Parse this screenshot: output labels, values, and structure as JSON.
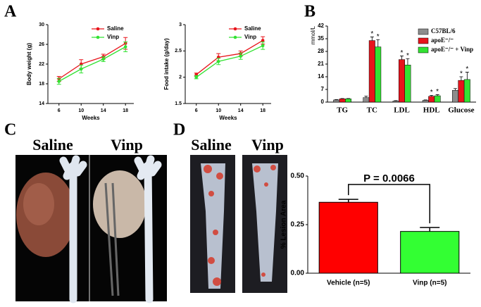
{
  "panel_labels": [
    "A",
    "B",
    "C",
    "D"
  ],
  "photo_labels": [
    "Saline",
    "Vinp",
    "Saline",
    "Vinp"
  ],
  "chart_data": [
    {
      "type": "line",
      "x_label": "Weeks",
      "y_label": "Body weight (g)",
      "x": [
        6,
        10,
        14,
        18
      ],
      "xlim": [
        4,
        19.5
      ],
      "xticks": [
        6,
        10,
        14,
        18
      ],
      "ylim": [
        14,
        30
      ],
      "yticks": [
        14,
        18,
        22,
        26,
        30
      ],
      "series": [
        {
          "name": "Saline",
          "color": "#e8141b",
          "values": [
            19,
            22,
            23.5,
            26.2
          ],
          "errors": [
            0.5,
            0.9,
            0.5,
            1.2
          ]
        },
        {
          "name": "Vinp",
          "color": "#33e233",
          "values": [
            18.5,
            21,
            23,
            25.5
          ],
          "errors": [
            0.6,
            0.8,
            0.5,
            1.0
          ]
        }
      ]
    },
    {
      "type": "line",
      "x_label": "Weeks",
      "y_label": "Food intake (g/day)",
      "x": [
        6,
        10,
        14,
        18
      ],
      "xlim": [
        4,
        19.5
      ],
      "xticks": [
        6,
        10,
        14,
        18
      ],
      "ylim": [
        1.5,
        3.0
      ],
      "yticks": [
        1.5,
        2.0,
        2.5,
        3.0
      ],
      "series": [
        {
          "name": "Saline",
          "color": "#e8141b",
          "values": [
            2.05,
            2.38,
            2.45,
            2.7
          ],
          "errors": [
            0.03,
            0.07,
            0.05,
            0.07
          ]
        },
        {
          "name": "Vinp",
          "color": "#33e233",
          "values": [
            2.0,
            2.3,
            2.4,
            2.6
          ],
          "errors": [
            0.03,
            0.06,
            0.06,
            0.07
          ]
        }
      ]
    },
    {
      "type": "grouped-bar",
      "y_label": "mmol/L",
      "categories": [
        "TG",
        "TC",
        "LDL",
        "HDL",
        "Glucose"
      ],
      "ylim": [
        0,
        42
      ],
      "yticks": [
        0,
        7,
        14,
        21,
        28,
        35,
        42
      ],
      "series": [
        {
          "name": "C57BL/6",
          "color": "#8c8c8c",
          "values": [
            1.2,
            2.5,
            0.6,
            1.0,
            6.5
          ],
          "errors": [
            0.2,
            0.8,
            0.2,
            0.2,
            1.0
          ],
          "significance": [
            null,
            null,
            null,
            null,
            null
          ]
        },
        {
          "name": "apoE⁻/⁻",
          "color": "#e8141b",
          "values": [
            1.8,
            34,
            23.5,
            3.2,
            12
          ],
          "errors": [
            0.2,
            2.0,
            2.0,
            0.5,
            2.0
          ],
          "significance": [
            null,
            "*",
            "*",
            "*",
            "*"
          ]
        },
        {
          "name": "apoE⁻/⁻ + Vinp",
          "color": "#33e233",
          "values": [
            1.8,
            30.5,
            20.5,
            3.5,
            12.5
          ],
          "errors": [
            0.2,
            4.0,
            3.5,
            0.6,
            4.0
          ],
          "significance": [
            null,
            "*",
            "*",
            "*",
            "*"
          ]
        }
      ]
    },
    {
      "type": "bar",
      "y_label": "% Lesion Area",
      "annotation": "P = 0.0066",
      "categories": [
        "Vehicle (n=5)",
        "Vinp (n=5)"
      ],
      "values": [
        0.365,
        0.215
      ],
      "errors": [
        0.015,
        0.02
      ],
      "colors": [
        "#ff0000",
        "#33ff33"
      ],
      "ylim": [
        0,
        0.5
      ],
      "yticks": [
        {
          "value": 0,
          "label": "0.00"
        },
        {
          "value": 0.25,
          "label": "0.25"
        },
        {
          "value": 0.5,
          "label": "0.50"
        }
      ]
    }
  ]
}
